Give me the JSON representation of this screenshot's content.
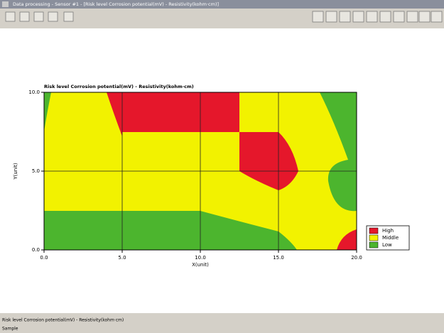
{
  "window": {
    "title": "Data processing - Sensor #1 - [Risk level Corrosion potential(mV) - Resistivity(kohm·cm)]",
    "status": "Risk level Corrosion potential(mV) - Resistivity(kohm·cm)",
    "status_hint": "Sample"
  },
  "chart_data": {
    "type": "region-map",
    "title": "Risk level Corrosion potential(mV) - Resistivity(kohm·cm)",
    "xlabel": "X(unit)",
    "ylabel": "Y(unit)",
    "xlim": [
      0,
      20
    ],
    "ylim": [
      0,
      10
    ],
    "xticks": [
      {
        "value": 0,
        "label": "0.0"
      },
      {
        "value": 5,
        "label": "5.0"
      },
      {
        "value": 10,
        "label": "10.0"
      },
      {
        "value": 15,
        "label": "15.0"
      },
      {
        "value": 20,
        "label": "20.0"
      }
    ],
    "yticks": [
      {
        "value": 0,
        "label": "0.0"
      },
      {
        "value": 5,
        "label": "5.0"
      },
      {
        "value": 10,
        "label": "10.0"
      }
    ],
    "grid": true,
    "legend": {
      "position": "right",
      "items": [
        {
          "name": "High",
          "color": "#e5172b"
        },
        {
          "name": "Middle",
          "color": "#f2f200"
        },
        {
          "name": "Low",
          "color": "#4cb52e"
        }
      ]
    }
  }
}
